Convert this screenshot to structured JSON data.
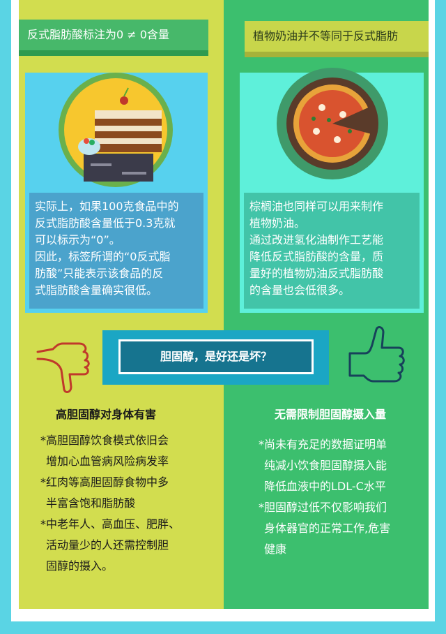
{
  "left": {
    "header": "反式脂肪酸标注为0 ≠ 0含量",
    "card_lines": [
      "实际上，如果100克食品中的",
      "反式脂肪酸含量低于0.3克就",
      "可以标示为“0”。",
      "因此，标签所谓的“0反式脂",
      "肪酸”只能表示该食品的反",
      "式脂肪酸含量确实很低。"
    ],
    "subtitle": "高胆固醇对身体有害",
    "bullets": [
      "*高胆固醇饮食模式依旧会",
      "增加心血管病风险病发率",
      "*红肉等高胆固醇食物中多",
      "半富含饱和脂肪酸",
      "*中老年人、高血压、肥胖、",
      "活动量少的人还需控制胆",
      "固醇的摄入。"
    ]
  },
  "right": {
    "header": "植物奶油并不等同于反式脂肪",
    "card_lines": [
      "棕榈油也同样可以用来制作",
      "植物奶油。",
      "通过改进氢化油制作工艺能",
      "降低反式脂肪酸的含量，质",
      "量好的植物奶油反式脂肪酸",
      "的含量也会低很多。"
    ],
    "subtitle": "无需限制胆固醇摄入量",
    "bullets": [
      "*尚未有充足的数据证明单",
      "纯减小饮食胆固醇摄入能",
      "降低血液中的LDL-C水平",
      "*胆固醇过低不仅影响我们",
      "身体器官的正常工作,危害",
      "健康"
    ]
  },
  "banner": "胆固醇，是好还是坏？",
  "colors": {
    "left_column": "#d2dd4f",
    "right_column": "#3cbf6e",
    "background": "#5ad4e4",
    "banner": "#16748f"
  },
  "icons": [
    "cake-icon",
    "pizza-icon",
    "thumbs-down-icon",
    "thumbs-up-icon"
  ]
}
